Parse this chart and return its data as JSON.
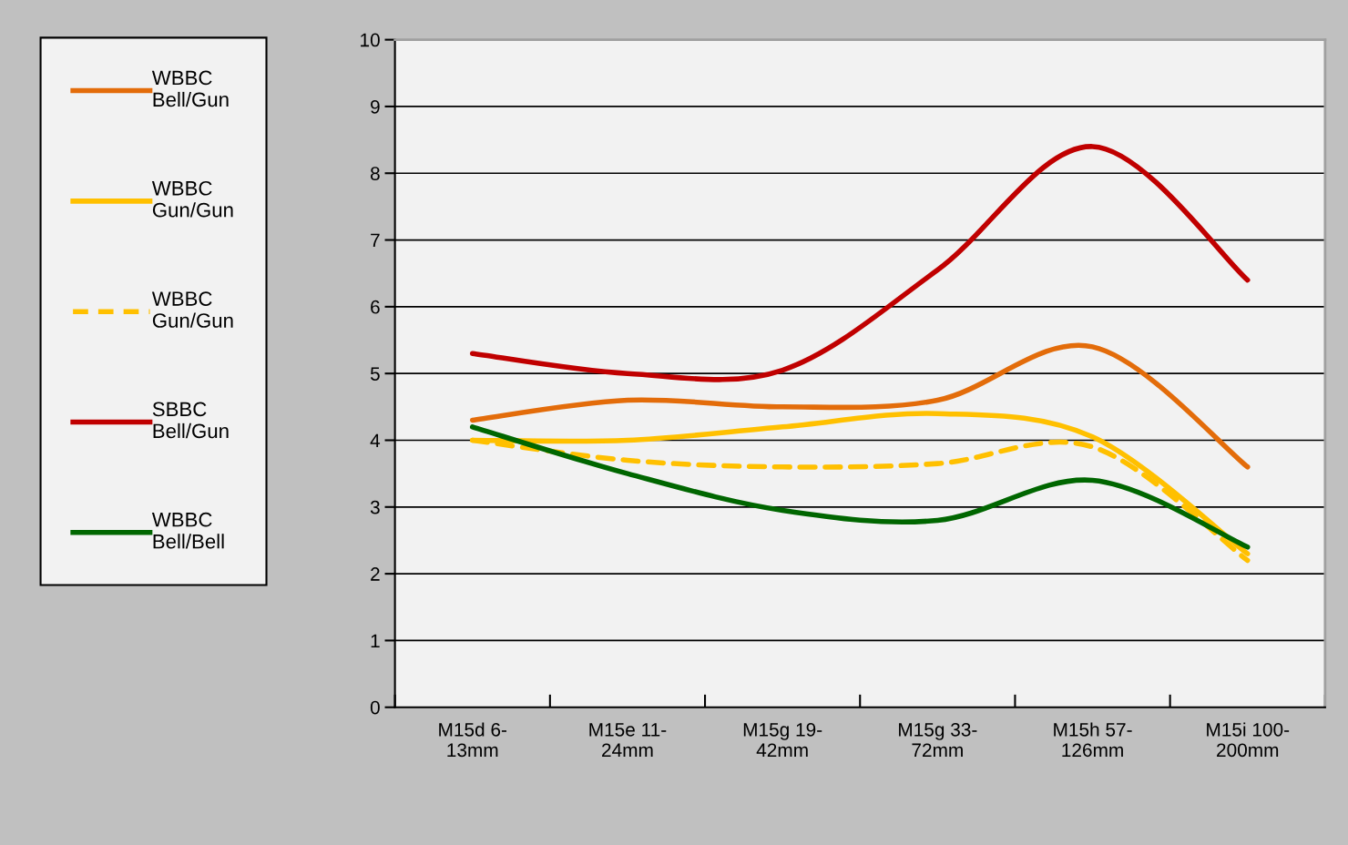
{
  "chart_data": {
    "type": "line",
    "categories": [
      "M15d 6-\n13mm",
      "M15e 11-\n24mm",
      "M15g 19-\n42mm",
      "M15g 33-\n72mm",
      "M15h 57-\n126mm",
      "M15i 100-\n200mm"
    ],
    "series": [
      {
        "name": "WBBC\nBell/Gun",
        "color": "#e36c0a",
        "line_style": "solid",
        "values": [
          4.3,
          4.6,
          4.5,
          4.6,
          5.4,
          3.6
        ]
      },
      {
        "name": "WBBC\nGun/Gun",
        "color": "#ffc000",
        "line_style": "solid",
        "values": [
          4.0,
          4.0,
          4.2,
          4.4,
          4.05,
          2.3
        ]
      },
      {
        "name": "WBBC\nGun/Gun",
        "color": "#ffc000",
        "line_style": "dashed",
        "values": [
          4.0,
          3.7,
          3.6,
          3.65,
          3.9,
          2.2
        ]
      },
      {
        "name": "SBBC\nBell/Gun",
        "color": "#c00000",
        "line_style": "solid",
        "values": [
          5.3,
          5.0,
          5.05,
          6.55,
          8.4,
          6.4
        ]
      },
      {
        "name": "WBBC\nBell/Bell",
        "color": "#006600",
        "line_style": "solid",
        "values": [
          4.2,
          3.5,
          2.95,
          2.8,
          3.4,
          2.4
        ]
      }
    ],
    "ylim": [
      0,
      10
    ],
    "yticks": [
      0,
      1,
      2,
      3,
      4,
      5,
      6,
      7,
      8,
      9,
      10
    ],
    "grid": "y",
    "legend": "left",
    "marker": "none"
  }
}
